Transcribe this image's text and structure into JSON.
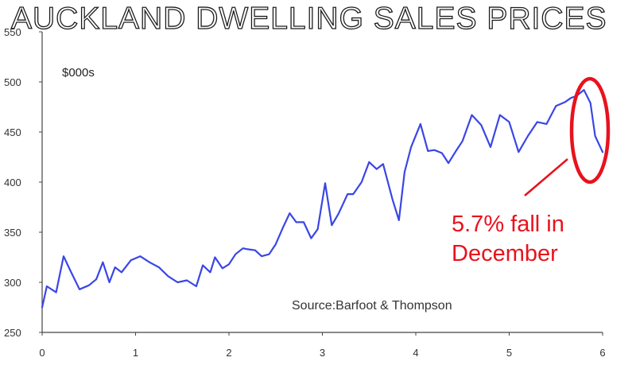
{
  "chart_data": {
    "type": "line",
    "title": "AUCKLAND DWELLING SALES PRICES",
    "unit_label": "$000s",
    "source": "Source:Barfoot & Thompson",
    "annotation": "5.7% fall in December",
    "annotation_lines": [
      "5.7% fall in",
      "December"
    ],
    "xlim": [
      0,
      6
    ],
    "ylim": [
      250,
      550
    ],
    "x_ticks": [
      "0",
      "1",
      "2",
      "3",
      "4",
      "5",
      "6"
    ],
    "y_ticks": [
      "250",
      "300",
      "350",
      "400",
      "450",
      "500",
      "550"
    ],
    "grid": false,
    "series": [
      {
        "color": "#3a46e6",
        "x": [
          0,
          0.05,
          0.15,
          0.23,
          0.3,
          0.4,
          0.5,
          0.58,
          0.65,
          0.72,
          0.78,
          0.85,
          0.95,
          1.05,
          1.15,
          1.25,
          1.35,
          1.45,
          1.55,
          1.65,
          1.72,
          1.8,
          1.85,
          1.93,
          2.0,
          2.07,
          2.15,
          2.2,
          2.28,
          2.35,
          2.43,
          2.5,
          2.58,
          2.65,
          2.72,
          2.8,
          2.88,
          2.95,
          3.03,
          3.1,
          3.17,
          3.22,
          3.27,
          3.33,
          3.42,
          3.5,
          3.58,
          3.65,
          3.75,
          3.82,
          3.88,
          3.95,
          4.05,
          4.13,
          4.2,
          4.28,
          4.35,
          4.43,
          4.5,
          4.6,
          4.7,
          4.8,
          4.9,
          5.0,
          5.1,
          5.2,
          5.3,
          5.4,
          5.5,
          5.6,
          5.66,
          5.72,
          5.8,
          5.87,
          5.92,
          6.0
        ],
        "y": [
          275,
          296,
          290,
          326,
          312,
          293,
          297,
          303,
          320,
          300,
          315,
          310,
          322,
          326,
          320,
          315,
          306,
          300,
          302,
          296,
          317,
          310,
          325,
          314,
          318,
          328,
          334,
          333,
          332,
          326,
          328,
          338,
          355,
          369,
          360,
          360,
          344,
          353,
          399,
          357,
          368,
          378,
          388,
          388,
          400,
          420,
          413,
          418,
          383,
          362,
          410,
          435,
          458,
          431,
          432,
          429,
          419,
          431,
          441,
          467,
          457,
          435,
          467,
          460,
          430,
          446,
          460,
          458,
          476,
          480,
          484,
          486,
          492,
          479,
          446,
          430
        ]
      }
    ]
  }
}
